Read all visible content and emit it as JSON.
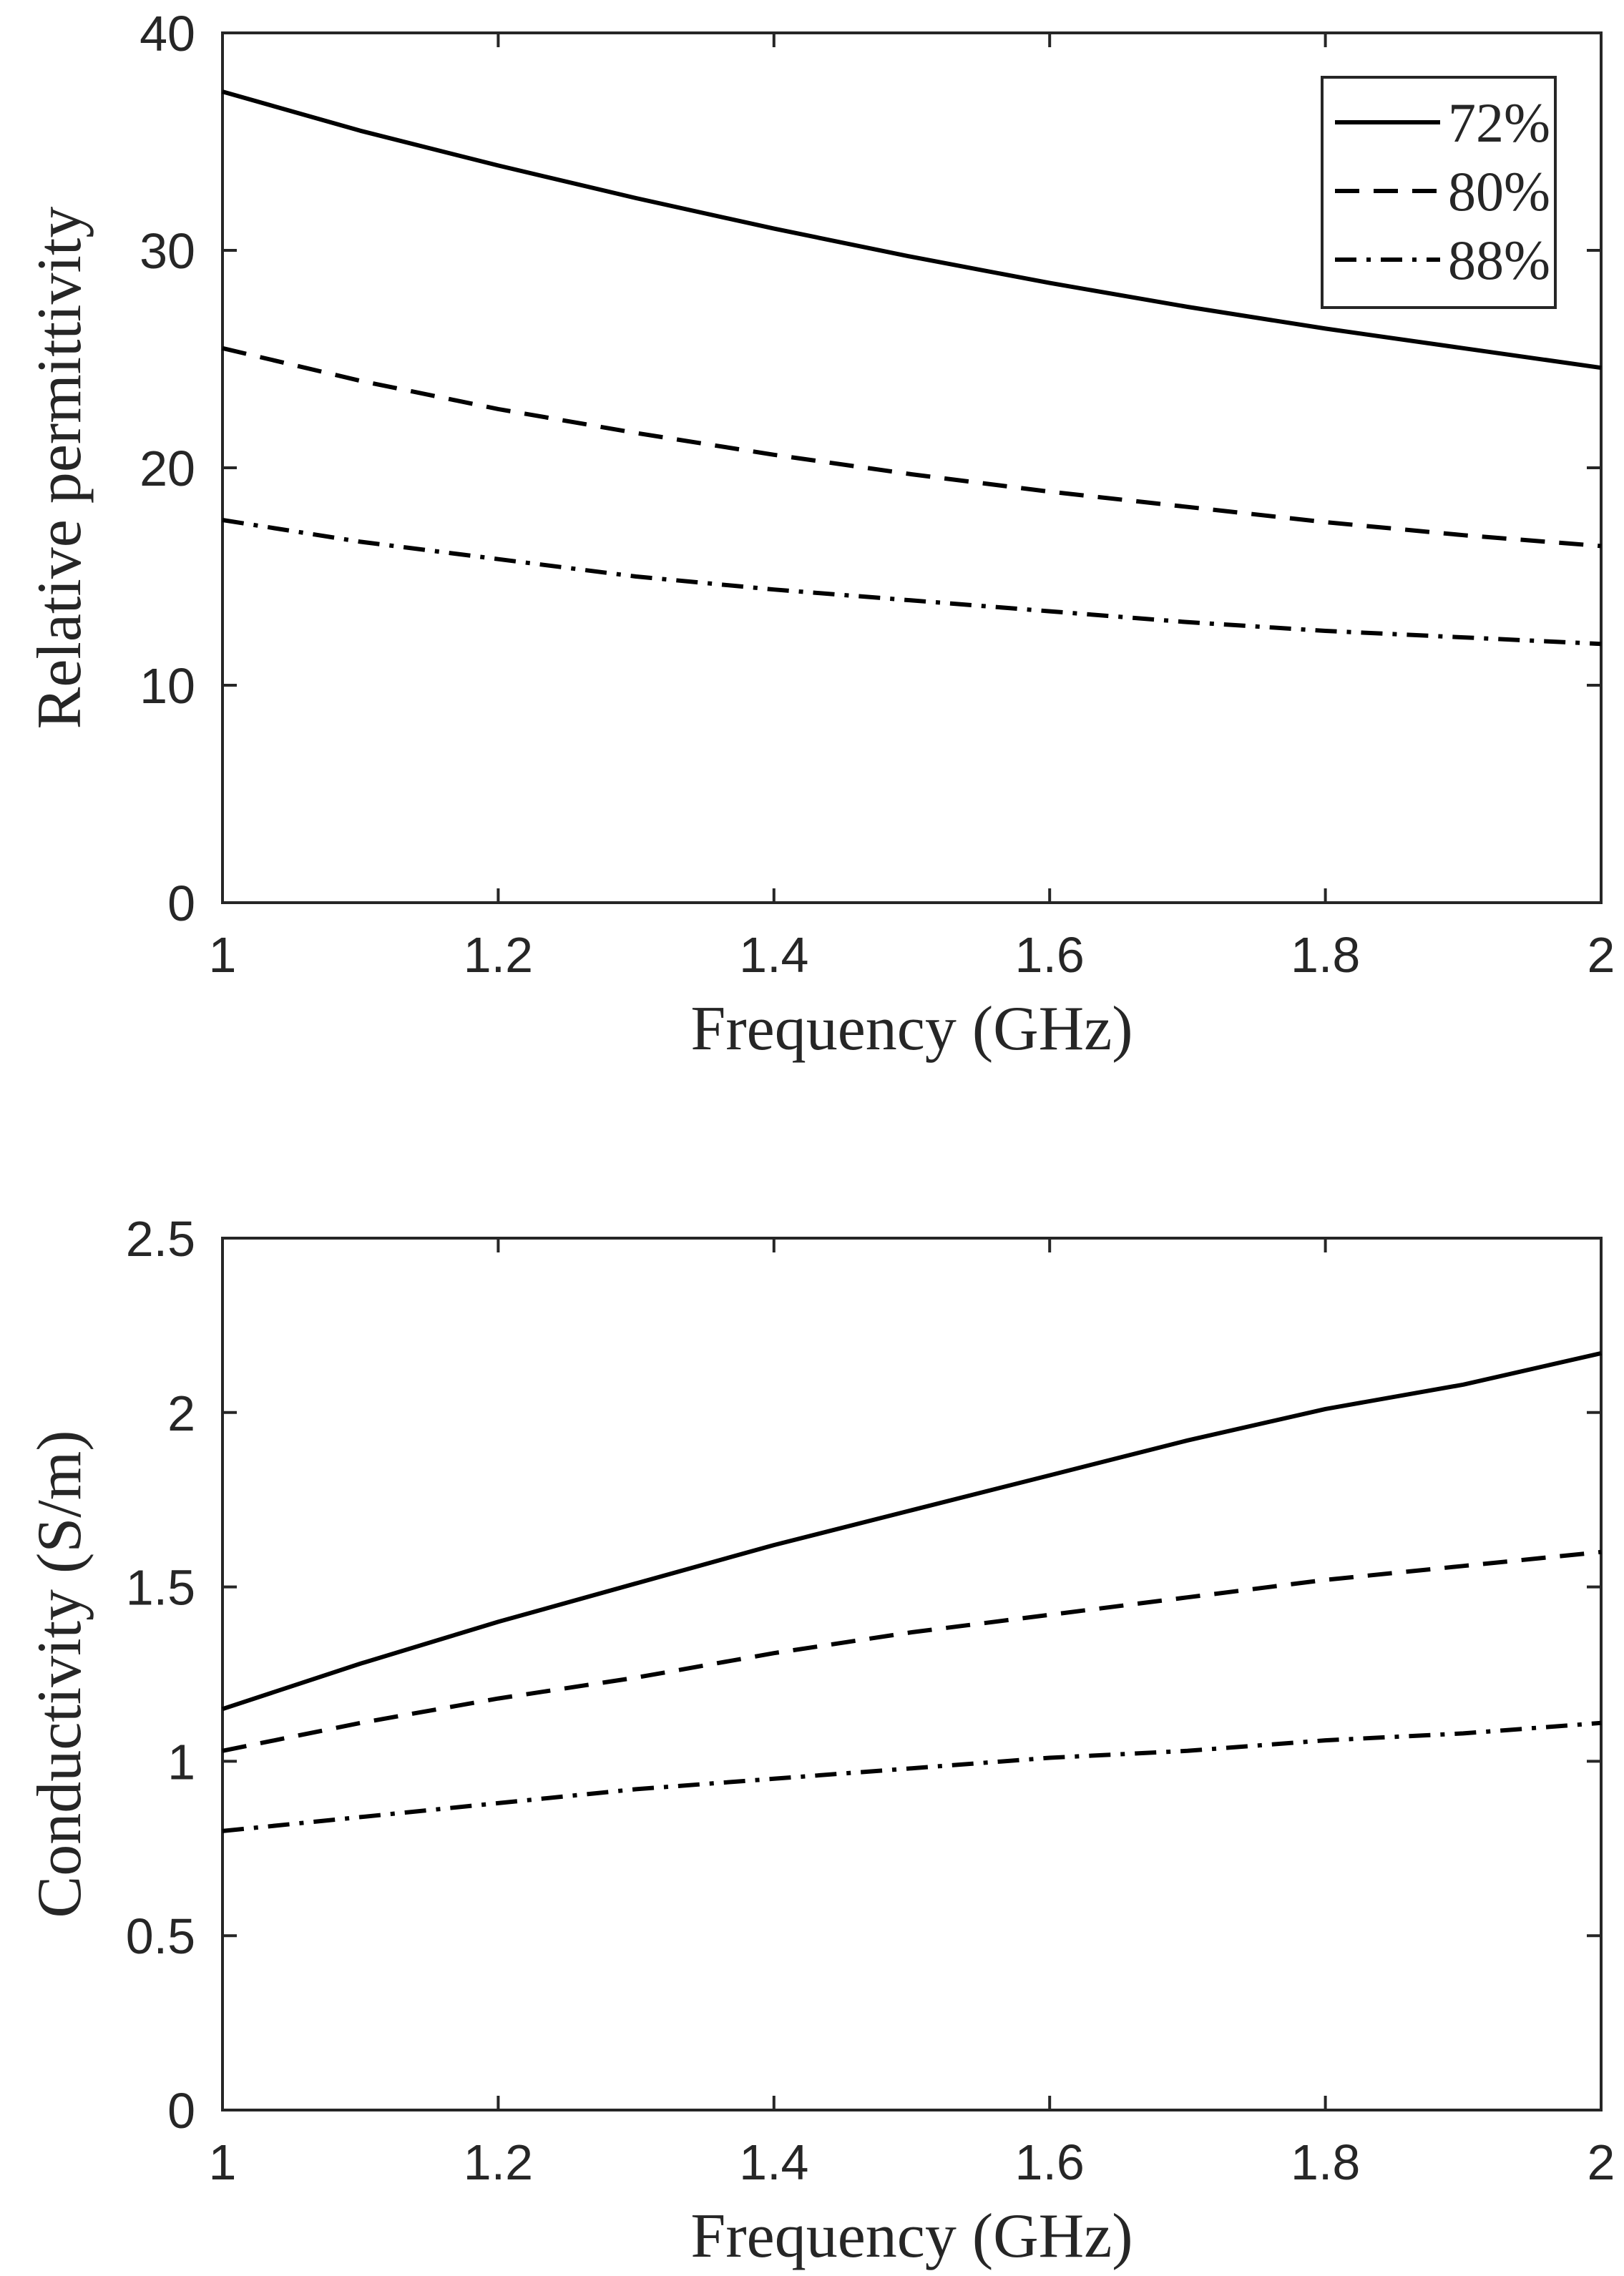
{
  "chart_data": [
    {
      "type": "line",
      "title": "",
      "xlabel": "Frequency (GHz)",
      "ylabel": "Relative permittivity",
      "xlim": [
        1,
        2
      ],
      "ylim": [
        0,
        40
      ],
      "xticks": [
        1,
        1.2,
        1.4,
        1.6,
        1.8,
        2
      ],
      "xtick_labels": [
        "1",
        "1.2",
        "1.4",
        "1.6",
        "1.8",
        "2"
      ],
      "yticks": [
        0,
        10,
        20,
        30,
        40
      ],
      "ytick_labels": [
        "0",
        "10",
        "20",
        "30",
        "40"
      ],
      "grid": false,
      "legend": {
        "placement": "top-right"
      },
      "x": [
        1.0,
        1.1,
        1.2,
        1.3,
        1.4,
        1.5,
        1.6,
        1.7,
        1.8,
        1.9,
        2.0
      ],
      "series": [
        {
          "name": "72%",
          "style": "solid",
          "values": [
            37.3,
            35.5,
            33.9,
            32.4,
            31.0,
            29.7,
            28.5,
            27.4,
            26.4,
            25.5,
            24.6
          ]
        },
        {
          "name": "80%",
          "style": "dashed",
          "values": [
            25.5,
            24.0,
            22.7,
            21.6,
            20.6,
            19.7,
            18.9,
            18.2,
            17.5,
            16.9,
            16.4
          ]
        },
        {
          "name": "88%",
          "style": "dashdot",
          "values": [
            17.6,
            16.6,
            15.8,
            15.0,
            14.4,
            13.9,
            13.4,
            12.9,
            12.5,
            12.2,
            11.9
          ]
        }
      ]
    },
    {
      "type": "line",
      "title": "",
      "xlabel": "Frequency (GHz)",
      "ylabel": "Conductivity (S/m)",
      "xlim": [
        1,
        2
      ],
      "ylim": [
        0,
        2.5
      ],
      "xticks": [
        1,
        1.2,
        1.4,
        1.6,
        1.8,
        2
      ],
      "xtick_labels": [
        "1",
        "1.2",
        "1.4",
        "1.6",
        "1.8",
        "2"
      ],
      "yticks": [
        0,
        0.5,
        1,
        1.5,
        2,
        2.5
      ],
      "ytick_labels": [
        "0",
        "0.5",
        "1",
        "1.5",
        "2",
        "2.5"
      ],
      "grid": false,
      "x": [
        1.0,
        1.1,
        1.2,
        1.3,
        1.4,
        1.5,
        1.6,
        1.7,
        1.8,
        1.9,
        2.0
      ],
      "series": [
        {
          "name": "72%",
          "style": "solid",
          "values": [
            1.15,
            1.28,
            1.4,
            1.51,
            1.62,
            1.72,
            1.82,
            1.92,
            2.01,
            2.08,
            2.17
          ]
        },
        {
          "name": "80%",
          "style": "dashed",
          "values": [
            1.03,
            1.11,
            1.18,
            1.24,
            1.31,
            1.37,
            1.42,
            1.47,
            1.52,
            1.56,
            1.6
          ]
        },
        {
          "name": "88%",
          "style": "dashdot",
          "values": [
            0.8,
            0.84,
            0.88,
            0.92,
            0.95,
            0.98,
            1.01,
            1.03,
            1.06,
            1.08,
            1.11
          ]
        }
      ]
    }
  ]
}
